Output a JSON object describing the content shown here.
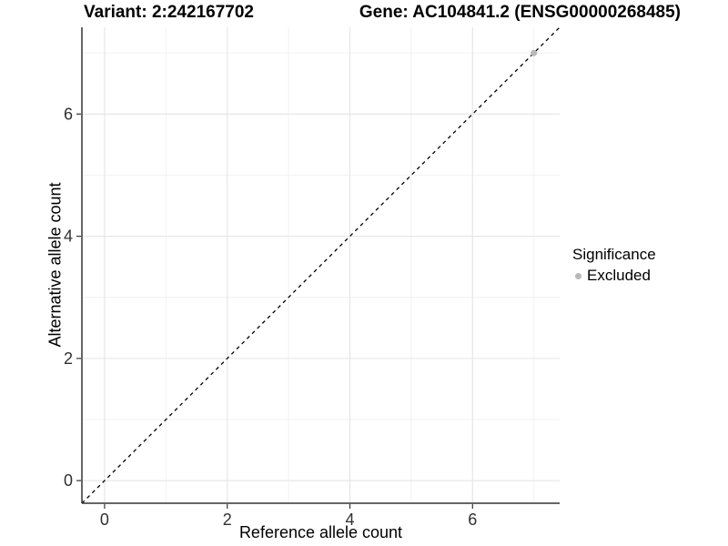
{
  "header": {
    "variant_title": "Variant: 2:242167702",
    "gene_title": "Gene: AC104841.2 (ENSG00000268485)"
  },
  "axes": {
    "x_label": "Reference allele count",
    "y_label": "Alternative allele count"
  },
  "legend": {
    "title": "Significance",
    "items": [
      {
        "label": "Excluded",
        "color": "#b8b8b8"
      }
    ]
  },
  "chart_data": {
    "type": "scatter",
    "title_left": "Variant: 2:242167702",
    "title_right": "Gene: AC104841.2 (ENSG00000268485)",
    "xlabel": "Reference allele count",
    "ylabel": "Alternative allele count",
    "xlim": [
      -0.37,
      7.42
    ],
    "ylim": [
      -0.37,
      7.42
    ],
    "x_major_ticks": [
      0,
      2,
      4,
      6
    ],
    "y_major_ticks": [
      0,
      2,
      4,
      6
    ],
    "x_minor_ticks": [
      1,
      3,
      5,
      7
    ],
    "y_minor_ticks": [
      1,
      3,
      5,
      7
    ],
    "grid": true,
    "legend_position": "right",
    "series": [
      {
        "name": "Excluded",
        "color": "#b8b8b8",
        "marker": "circle",
        "points": [
          [
            7,
            7
          ]
        ]
      }
    ],
    "reference_line": {
      "slope": 1,
      "intercept": 0,
      "style": "dashed",
      "color": "#000000"
    }
  },
  "style_colors": {
    "grid_major": "#e5e5e5",
    "grid_minor": "#f0f0f0",
    "axis_line": "#333333",
    "tick_label": "#303030"
  }
}
